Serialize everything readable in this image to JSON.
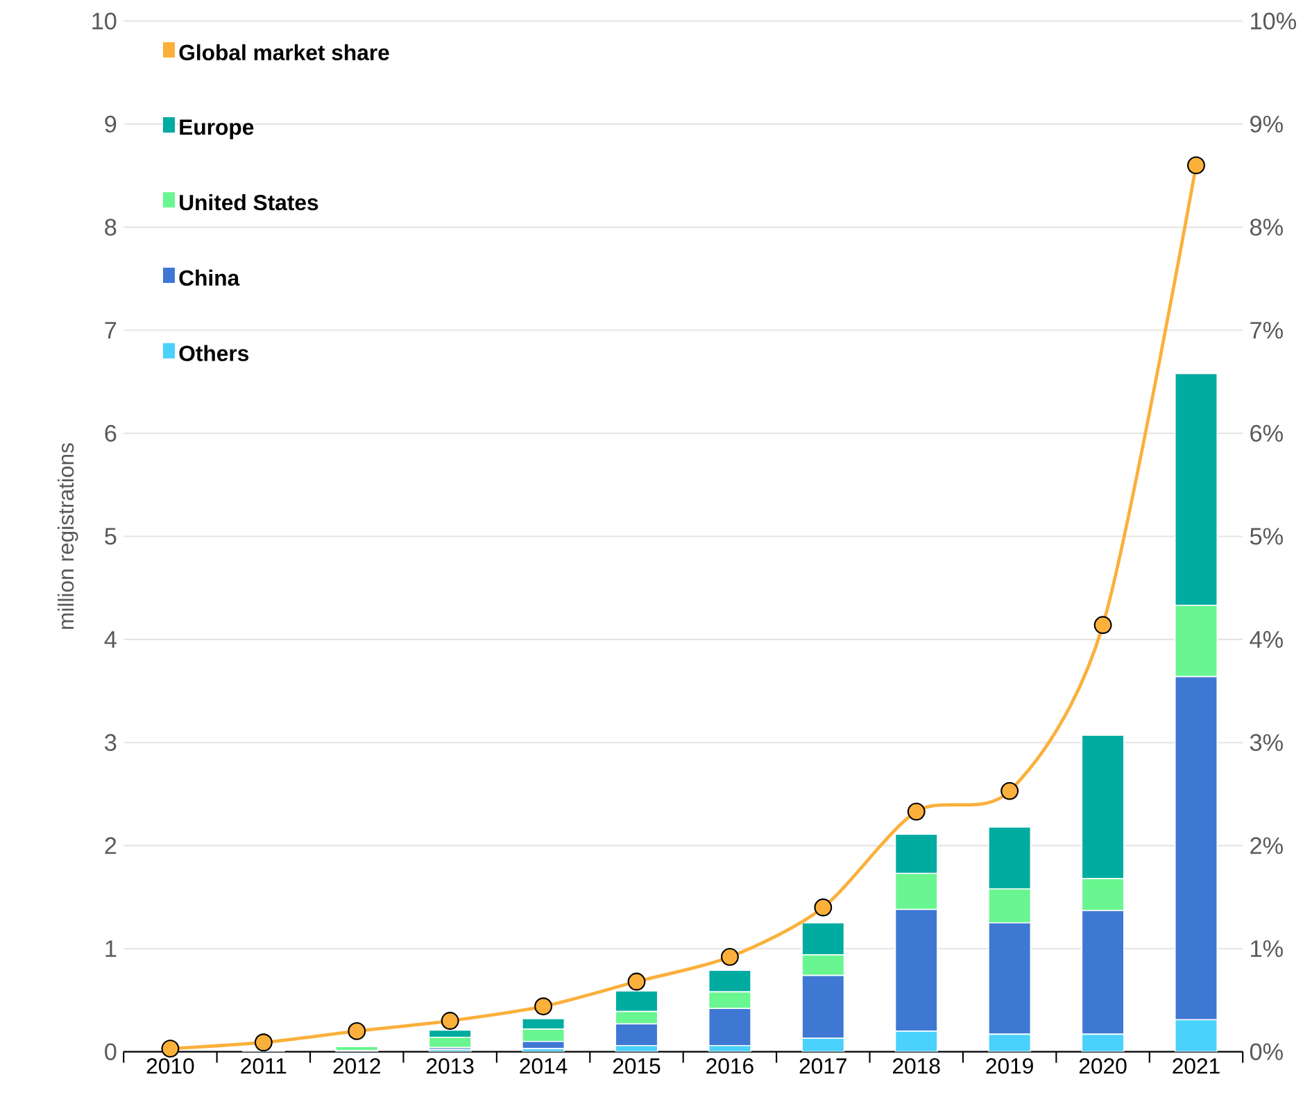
{
  "chart_data": {
    "type": "bar",
    "stacked": true,
    "categories": [
      "2010",
      "2011",
      "2012",
      "2013",
      "2014",
      "2015",
      "2016",
      "2017",
      "2018",
      "2019",
      "2020",
      "2021"
    ],
    "ylabel": "million registrations",
    "ylim": [
      0,
      10
    ],
    "yticks": [
      0,
      1,
      2,
      3,
      4,
      5,
      6,
      7,
      8,
      9,
      10
    ],
    "y2lim": [
      0,
      10
    ],
    "y2ticks": [
      {
        "value": 0,
        "label": "0%"
      },
      {
        "value": 1,
        "label": "1%"
      },
      {
        "value": 2,
        "label": "2%"
      },
      {
        "value": 3,
        "label": "3%"
      },
      {
        "value": 4,
        "label": "4%"
      },
      {
        "value": 5,
        "label": "5%"
      },
      {
        "value": 6,
        "label": "6%"
      },
      {
        "value": 7,
        "label": "7%"
      },
      {
        "value": 8,
        "label": "8%"
      },
      {
        "value": 9,
        "label": "9%"
      },
      {
        "value": 10,
        "label": "10%"
      }
    ],
    "grid": "y",
    "legend": "top left",
    "series": [
      {
        "name": "Others",
        "color": "#4ad2fc",
        "values": [
          0,
          0,
          null,
          0.02,
          0.03,
          0.06,
          0.06,
          0.13,
          0.2,
          0.17,
          0.17,
          0.31
        ]
      },
      {
        "name": "China",
        "color": "#3f78d3",
        "values": [
          0,
          0,
          0.01,
          0.02,
          0.07,
          0.21,
          0.36,
          0.61,
          1.18,
          1.08,
          1.2,
          3.33
        ]
      },
      {
        "name": "United States",
        "color": "#69f590",
        "values": [
          0,
          null,
          0.04,
          0.1,
          0.12,
          0.12,
          0.16,
          0.2,
          0.35,
          0.33,
          0.31,
          0.69
        ]
      },
      {
        "name": "Europe",
        "color": "#00ab9f",
        "values": [
          0,
          0.01,
          0.01,
          0.07,
          0.1,
          0.2,
          0.21,
          0.31,
          0.38,
          0.6,
          1.39,
          2.25
        ]
      },
      {
        "name": "Global market share",
        "type": "line",
        "axis": "y2",
        "color": "#fbb03b",
        "marker": "circle",
        "values": [
          0.03,
          0.09,
          0.2,
          0.3,
          0.44,
          0.68,
          0.92,
          1.4,
          2.33,
          2.53,
          4.14,
          8.6
        ]
      }
    ]
  }
}
